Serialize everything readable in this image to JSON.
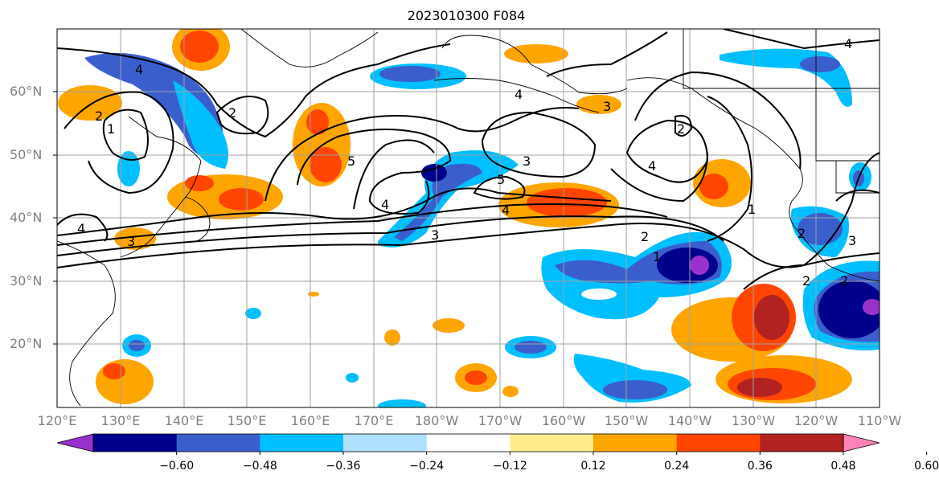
{
  "title": "2023010300 F084",
  "lat_labels": [
    "60°N",
    "50°N",
    "40°N",
    "30°N",
    "20°N"
  ],
  "lon_labels": [
    "120°E",
    "130°E",
    "140°E",
    "150°E",
    "160°E",
    "170°E",
    "180°W",
    "170°W",
    "160°W",
    "150°W",
    "140°W",
    "130°W",
    "120°W",
    "110°W"
  ],
  "colorbar": {
    "colors": [
      "#9932cc",
      "#00008b",
      "#3a5fcd",
      "#00bfff",
      "#b0e2ff",
      "#ffffff",
      "#ffec8b",
      "#ffa500",
      "#ff4500",
      "#b22222",
      "#ff83b4"
    ],
    "labels": [
      "−0.60",
      "−0.48",
      "−0.36",
      "−0.24",
      "−0.12",
      "0.12",
      "0.24",
      "0.36",
      "0.48",
      "0.60"
    ]
  },
  "contour_labels": [
    "4",
    "2",
    "1",
    "2",
    "4",
    "3",
    "5",
    "4",
    "3",
    "5",
    "4",
    "3",
    "2",
    "4",
    "2",
    "1",
    "1",
    "2",
    "2",
    "4",
    "3",
    "2",
    "4",
    "3"
  ]
}
